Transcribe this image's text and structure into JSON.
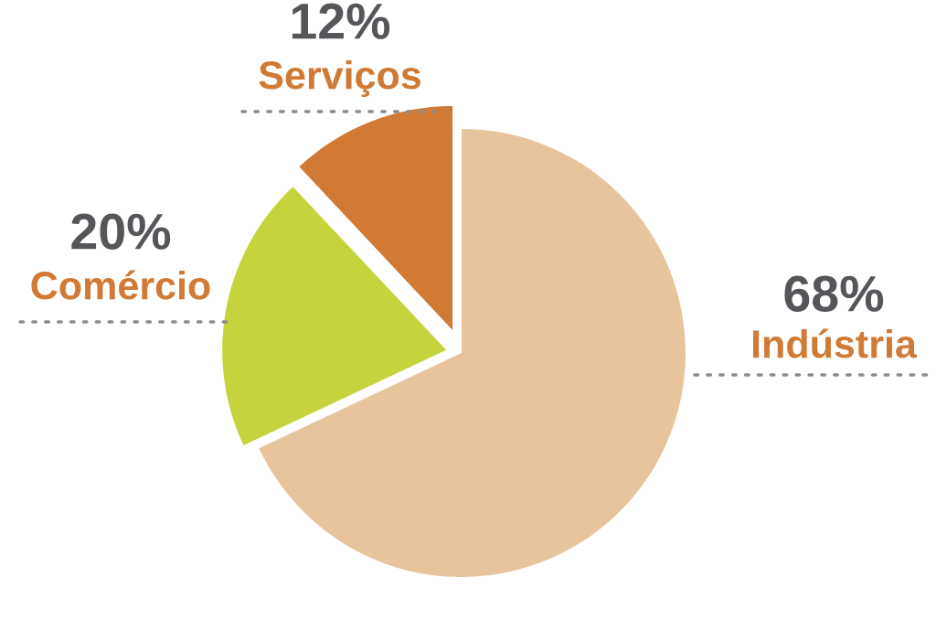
{
  "chart_data": {
    "type": "pie",
    "categories": [
      "Indústria",
      "Comércio",
      "Serviços"
    ],
    "values": [
      68,
      20,
      12
    ],
    "value_labels": [
      "68%",
      "20%",
      "12%"
    ],
    "colors": [
      "#e8c49d",
      "#c5d43c",
      "#d07a35"
    ],
    "legend": false
  }
}
